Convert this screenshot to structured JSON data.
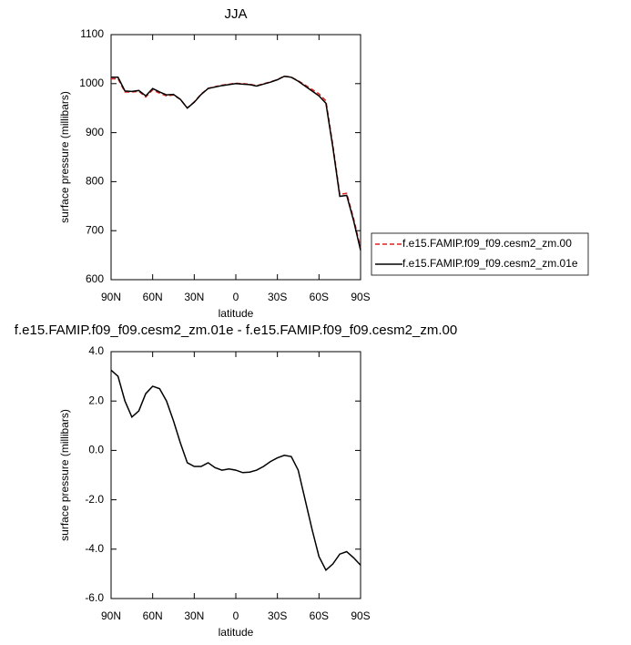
{
  "chart_data": [
    {
      "type": "line",
      "title": "JJA",
      "x_label": "latitude",
      "y_label": "surface pressure (millibars)",
      "x": [
        90,
        85,
        80,
        75,
        70,
        65,
        60,
        55,
        50,
        45,
        40,
        35,
        30,
        25,
        20,
        15,
        10,
        5,
        0,
        -5,
        -10,
        -15,
        -20,
        -25,
        -30,
        -35,
        -40,
        -45,
        -50,
        -55,
        -60,
        -65,
        -70,
        -75,
        -80,
        -85,
        -90
      ],
      "xlim": [
        90,
        -90
      ],
      "xticks": [
        {
          "value": 90,
          "label": "90N"
        },
        {
          "value": 60,
          "label": "60N"
        },
        {
          "value": 30,
          "label": "30N"
        },
        0,
        {
          "value": -30,
          "label": "30S"
        },
        {
          "value": -60,
          "label": "60S"
        },
        {
          "value": -90,
          "label": "90S"
        }
      ],
      "ylim": [
        600,
        1100
      ],
      "yticks": [
        600,
        700,
        800,
        900,
        1000,
        1100
      ],
      "legend": "right",
      "series": [
        {
          "name": "f.e15.FAMIP.f09_f09.cesm2_zm.00",
          "color": "#e0201b",
          "line_style": "dashed",
          "values": [
            1009.8,
            1010,
            983,
            982.7,
            984.4,
            972.7,
            987.4,
            980.5,
            975,
            976.8,
            967.7,
            950.5,
            962.7,
            978.7,
            990.5,
            993.7,
            996.8,
            998.8,
            1000.8,
            999.9,
            998.9,
            995.8,
            999.7,
            1003.5,
            1008.3,
            1015.2,
            1013.3,
            1005.8,
            997,
            988.2,
            979.3,
            964.9,
            874.6,
            774.2,
            776.1,
            724.4,
            664.7
          ]
        },
        {
          "name": "f.e15.FAMIP.f09_f09.cesm2_zm.01e",
          "color": "#000000",
          "line_style": "solid",
          "values": [
            1013,
            1013,
            985,
            984,
            986,
            975,
            990,
            983,
            977,
            978,
            968,
            950,
            962,
            978,
            990,
            993,
            996,
            998,
            1000,
            999,
            998,
            995,
            999,
            1003,
            1008,
            1015,
            1013,
            1005,
            995,
            985,
            975,
            960,
            870,
            770,
            772,
            720,
            660
          ]
        }
      ]
    },
    {
      "type": "line",
      "title": "f.e15.FAMIP.f09_f09.cesm2_zm.01e - f.e15.FAMIP.f09_f09.cesm2_zm.00",
      "x_label": "latitude",
      "y_label": "surface pressure (millibars)",
      "x": [
        90,
        85,
        80,
        75,
        70,
        65,
        60,
        55,
        50,
        45,
        40,
        35,
        30,
        25,
        20,
        15,
        10,
        5,
        0,
        -5,
        -10,
        -15,
        -20,
        -25,
        -30,
        -35,
        -40,
        -45,
        -50,
        -55,
        -60,
        -65,
        -70,
        -75,
        -80,
        -85,
        -90
      ],
      "xlim": [
        90,
        -90
      ],
      "xticks": [
        {
          "value": 90,
          "label": "90N"
        },
        {
          "value": 60,
          "label": "60N"
        },
        {
          "value": 30,
          "label": "30N"
        },
        0,
        {
          "value": -30,
          "label": "30S"
        },
        {
          "value": -60,
          "label": "60S"
        },
        {
          "value": -90,
          "label": "90S"
        }
      ],
      "ylim": [
        -6,
        4
      ],
      "yticks": [
        {
          "value": -6,
          "label": "-6.0"
        },
        {
          "value": -4,
          "label": "-4.0"
        },
        {
          "value": -2,
          "label": "-2.0"
        },
        {
          "value": 0,
          "label": "0.0"
        },
        {
          "value": 2,
          "label": "2.0"
        },
        {
          "value": 4,
          "label": "4.0"
        }
      ],
      "color": "#000000",
      "values": [
        3.25,
        3.0,
        2.0,
        1.35,
        1.6,
        2.3,
        2.6,
        2.5,
        2.0,
        1.2,
        0.3,
        -0.5,
        -0.65,
        -0.65,
        -0.5,
        -0.7,
        -0.8,
        -0.75,
        -0.8,
        -0.9,
        -0.88,
        -0.8,
        -0.65,
        -0.45,
        -0.3,
        -0.2,
        -0.25,
        -0.8,
        -2.0,
        -3.2,
        -4.3,
        -4.85,
        -4.6,
        -4.2,
        -4.1,
        -4.35,
        -4.65
      ]
    }
  ]
}
